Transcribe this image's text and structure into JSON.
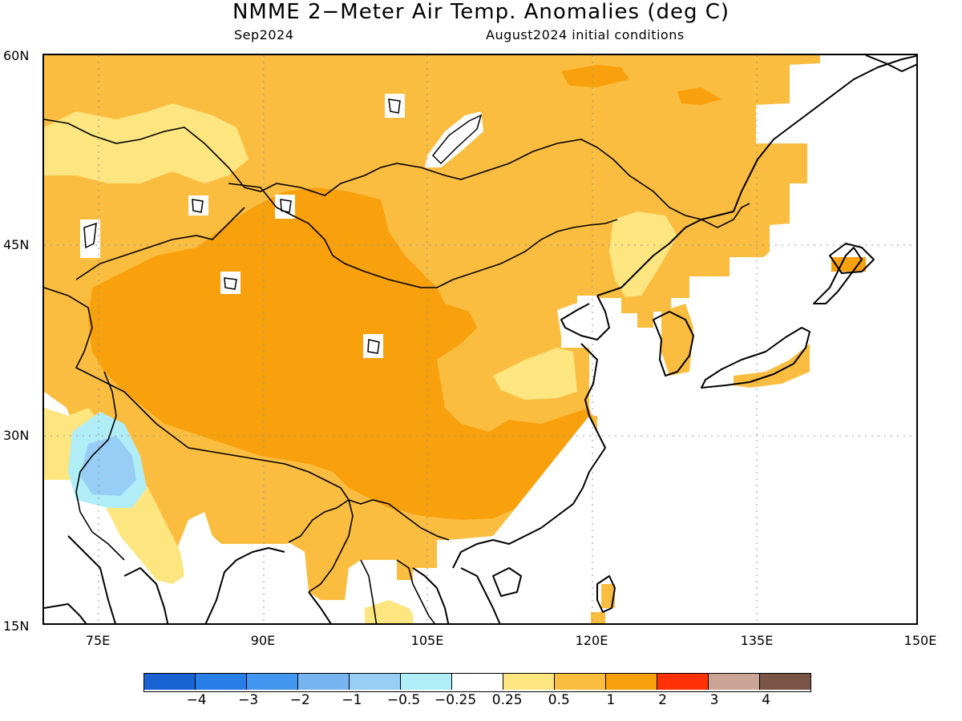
{
  "title": "NMME 2−Meter Air Temp. Anomalies (deg C)",
  "subtitle_left": "Sep2024",
  "subtitle_right": "August2024 initial conditions",
  "lat_labels": [
    "60N",
    "45N",
    "30N",
    "15N"
  ],
  "lon_labels": [
    "75E",
    "90E",
    "105E",
    "120E",
    "135E",
    "150E"
  ],
  "map": {
    "lon_range": [
      68,
      150
    ],
    "lat_range": [
      15,
      60
    ],
    "grid_lines": "dotted",
    "colors": {
      "land_0.25_0.5": "#fde57f",
      "land_0.5_1": "#fbbd40",
      "land_1_2": "#f9a00d",
      "neg_0.25_0.5": "#b0edf7",
      "neg_0.5_1": "#98cef5",
      "no_signal": "#ffffff"
    }
  },
  "colorbar": {
    "colors": [
      "#1963d2",
      "#2a7ee8",
      "#4296ef",
      "#78b4f1",
      "#98cef5",
      "#b0edf7",
      "#ffffff",
      "#fde57f",
      "#fbbd40",
      "#f9a00d",
      "#ff3207",
      "#caa597",
      "#7b5448"
    ],
    "labels": [
      "−4",
      "−3",
      "−2",
      "−1",
      "−0.5",
      "−0.25",
      "0.25",
      "0.5",
      "1",
      "2",
      "3",
      "4"
    ]
  }
}
